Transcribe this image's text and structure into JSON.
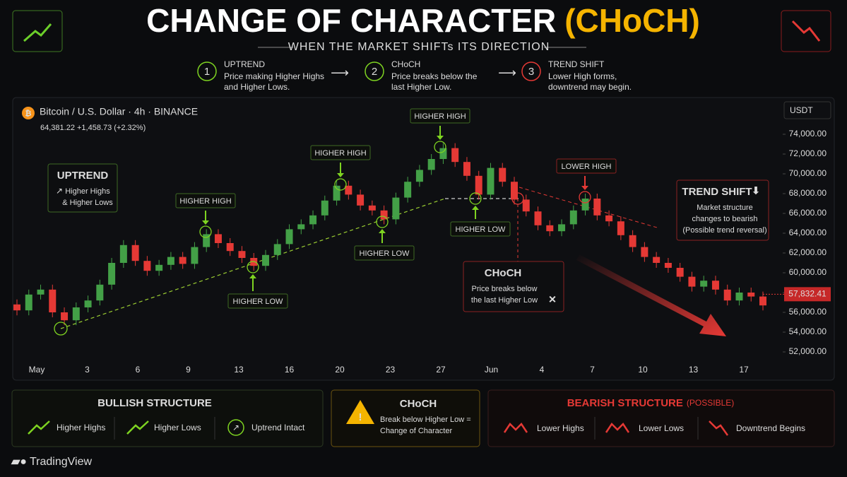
{
  "header": {
    "title": "CHANGE OF CHARACTER",
    "title_highlight": "(CHoCH)",
    "subtitle": "WHEN THE MARKET SHIFTs ITS DIRECTION",
    "steps": [
      {
        "num": "1",
        "title": "UPTREND",
        "lines": [
          "Price making Higher Highs",
          "and Higher Lows."
        ]
      },
      {
        "num": "2",
        "title": "CHoCH",
        "lines": [
          "Price breaks below the",
          "last Higher Low."
        ]
      },
      {
        "num": "3",
        "title": "TREND SHIFT",
        "lines": [
          "Lower High forms,",
          "downtrend may begin."
        ]
      }
    ]
  },
  "chart_data": {
    "type": "candlestick",
    "symbol": "Bitcoin / U.S. Dollar · 4h · BINANCE",
    "quote": "64,381.22  +1,458.73 (+2.32%)",
    "currency": "USDT",
    "up_color": "#43a047",
    "down_color": "#e53935",
    "open": [
      56800,
      56200,
      57800,
      58300,
      56000,
      55200,
      56500,
      57200,
      58800,
      61000,
      62800,
      61200,
      60200,
      60800,
      61600,
      60900,
      62600,
      63900,
      63000,
      62200,
      61500,
      60700,
      61800,
      62900,
      64400,
      64900,
      65800,
      67300,
      68800,
      67900,
      66800,
      66300,
      65400,
      67600,
      69200,
      70400,
      71500,
      72600,
      71200,
      69800,
      67900,
      70600,
      69200,
      67400,
      66200,
      64800,
      64200,
      64900,
      66300,
      67500,
      65800,
      65200,
      63800,
      62600,
      61600,
      61000,
      60500,
      59600,
      58600,
      59200,
      58300,
      57200,
      58000,
      57600
    ],
    "high": [
      57300,
      58300,
      58800,
      58800,
      56500,
      57000,
      57700,
      59300,
      61500,
      63300,
      63300,
      61700,
      61300,
      62100,
      62100,
      63100,
      64400,
      64400,
      63500,
      62700,
      62000,
      62300,
      63400,
      64900,
      65400,
      66300,
      67800,
      69300,
      69300,
      68400,
      67300,
      66800,
      68100,
      69700,
      70900,
      72000,
      73100,
      73100,
      71700,
      70300,
      71100,
      71100,
      69700,
      67900,
      66700,
      65300,
      65400,
      66800,
      68000,
      68000,
      66300,
      65700,
      64300,
      63100,
      62100,
      61500,
      61000,
      60100,
      59700,
      59700,
      58800,
      58500,
      58500,
      58100
    ],
    "low": [
      55700,
      55700,
      57300,
      55500,
      54700,
      54700,
      56000,
      56700,
      58300,
      60500,
      60700,
      59700,
      59700,
      60300,
      60400,
      60400,
      62100,
      62500,
      61700,
      61000,
      60200,
      60200,
      61300,
      62400,
      63900,
      64400,
      65300,
      66800,
      67400,
      66300,
      65800,
      64900,
      64900,
      67100,
      68700,
      69900,
      71000,
      70700,
      69300,
      67400,
      67400,
      68700,
      66900,
      65700,
      64300,
      63700,
      63700,
      64400,
      65800,
      65300,
      64700,
      63300,
      62100,
      61100,
      60500,
      60000,
      59100,
      58100,
      58100,
      57800,
      56700,
      56700,
      57100,
      56200
    ],
    "close": [
      56200,
      57800,
      58300,
      56000,
      55200,
      56500,
      57200,
      58800,
      61000,
      62800,
      61200,
      60200,
      60800,
      61600,
      60900,
      62600,
      63900,
      63000,
      62200,
      61500,
      60700,
      61800,
      62900,
      64400,
      64900,
      65800,
      67300,
      68800,
      67900,
      66800,
      66300,
      65400,
      67600,
      69200,
      70400,
      71500,
      72600,
      71200,
      69800,
      67900,
      70600,
      69200,
      67400,
      66200,
      64800,
      64200,
      64900,
      66300,
      67500,
      65800,
      65200,
      63800,
      62600,
      61600,
      61000,
      60500,
      59600,
      58600,
      59200,
      58300,
      57200,
      58000,
      57600,
      56700
    ],
    "last_price": {
      "value": 57832.41,
      "label": "57,832.41"
    },
    "ylim": [
      51000,
      75000
    ],
    "yticks": [
      {
        "value": 52000,
        "label": "52,000.00"
      },
      {
        "value": 54000,
        "label": "54,000.00"
      },
      {
        "value": 56000,
        "label": "56,000.00"
      },
      {
        "value": 58000,
        "label": "58,000.00"
      },
      {
        "value": 60000,
        "label": "60,000.00"
      },
      {
        "value": 62000,
        "label": "62,000.00"
      },
      {
        "value": 64000,
        "label": "64,000.00"
      },
      {
        "value": 66000,
        "label": "66,000.00"
      },
      {
        "value": 68000,
        "label": "68,000.00"
      },
      {
        "value": 70000,
        "label": "70,000.00"
      },
      {
        "value": 72000,
        "label": "72,000.00"
      },
      {
        "value": 74000,
        "label": "74,000.00"
      }
    ],
    "x_labels": [
      "May",
      "3",
      "6",
      "9",
      "13",
      "16",
      "20",
      "23",
      "27",
      "Jun",
      "4",
      "7",
      "10",
      "13",
      "17"
    ],
    "annotations": [
      "HIGHER HIGH",
      "HIGHER LOW",
      "HIGHER HIGH",
      "HIGHER LOW",
      "HIGHER HIGH",
      "HIGHER LOW",
      "LOWER HIGH"
    ],
    "uptrend": {
      "title": "UPTREND",
      "lines": [
        "Higher Highs",
        "& Higher Lows"
      ]
    },
    "choch": {
      "title": "CHoCH",
      "lines": [
        "Price breaks below",
        "the last Higher Low"
      ]
    },
    "trend_shift": {
      "title": "TREND SHIFT",
      "lines": [
        "Market structure",
        "changes to bearish",
        "(Possible trend reversal)"
      ]
    }
  },
  "footer": {
    "bullish": {
      "title": "BULLISH STRUCTURE",
      "items": [
        "Higher Highs",
        "Higher Lows",
        "Uptrend Intact"
      ]
    },
    "choch": {
      "title": "CHoCH",
      "lines": [
        "Break below Higher Low =",
        "Change of Character"
      ]
    },
    "bearish": {
      "title": "BEARISH STRUCTURE",
      "suffix": "(POSSIBLE)",
      "items": [
        "Lower Highs",
        "Lower Lows",
        "Downtrend Begins"
      ]
    },
    "brand": "TradingView"
  }
}
